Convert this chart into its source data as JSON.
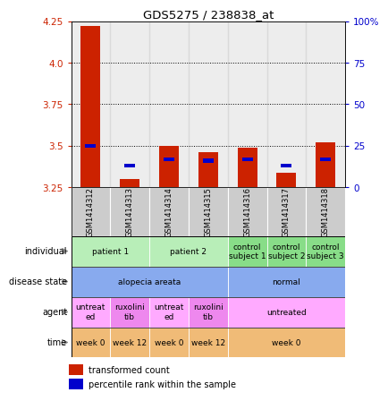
{
  "title": "GDS5275 / 238838_at",
  "samples": [
    "GSM1414312",
    "GSM1414313",
    "GSM1414314",
    "GSM1414315",
    "GSM1414316",
    "GSM1414317",
    "GSM1414318"
  ],
  "red_values": [
    4.22,
    3.3,
    3.5,
    3.46,
    3.49,
    3.34,
    3.52
  ],
  "blue_values": [
    3.5,
    3.38,
    3.42,
    3.41,
    3.42,
    3.38,
    3.42
  ],
  "y_min": 3.25,
  "y_max": 4.25,
  "y_ticks_left": [
    3.25,
    3.5,
    3.75,
    4.0,
    4.25
  ],
  "y_ticks_right": [
    0,
    25,
    50,
    75,
    100
  ],
  "y_right_labels": [
    "0",
    "25",
    "50",
    "75",
    "100%"
  ],
  "dotted_lines": [
    3.5,
    3.75,
    4.0
  ],
  "bar_width": 0.5,
  "bar_bottom": 3.25,
  "individual_groups": [
    {
      "label": "patient 1",
      "cols": [
        0,
        1
      ],
      "color": "#b8eeb8"
    },
    {
      "label": "patient 2",
      "cols": [
        2,
        3
      ],
      "color": "#b8eeb8"
    },
    {
      "label": "control\nsubject 1",
      "cols": [
        4,
        4
      ],
      "color": "#88dd88"
    },
    {
      "label": "control\nsubject 2",
      "cols": [
        5,
        5
      ],
      "color": "#88dd88"
    },
    {
      "label": "control\nsubject 3",
      "cols": [
        6,
        6
      ],
      "color": "#88dd88"
    }
  ],
  "disease_groups": [
    {
      "label": "alopecia areata",
      "cols": [
        0,
        3
      ],
      "color": "#88aaee"
    },
    {
      "label": "normal",
      "cols": [
        4,
        6
      ],
      "color": "#88aaee"
    }
  ],
  "agent_groups": [
    {
      "label": "untreat\ned",
      "cols": [
        0,
        0
      ],
      "color": "#ffaaff"
    },
    {
      "label": "ruxolini\ntib",
      "cols": [
        1,
        1
      ],
      "color": "#ee88ee"
    },
    {
      "label": "untreat\ned",
      "cols": [
        2,
        2
      ],
      "color": "#ffaaff"
    },
    {
      "label": "ruxolini\ntib",
      "cols": [
        3,
        3
      ],
      "color": "#ee88ee"
    },
    {
      "label": "untreated",
      "cols": [
        4,
        6
      ],
      "color": "#ffaaff"
    }
  ],
  "time_groups": [
    {
      "label": "week 0",
      "cols": [
        0,
        0
      ],
      "color": "#f0bb77"
    },
    {
      "label": "week 12",
      "cols": [
        1,
        1
      ],
      "color": "#f0bb77"
    },
    {
      "label": "week 0",
      "cols": [
        2,
        2
      ],
      "color": "#f0bb77"
    },
    {
      "label": "week 12",
      "cols": [
        3,
        3
      ],
      "color": "#f0bb77"
    },
    {
      "label": "week 0",
      "cols": [
        4,
        6
      ],
      "color": "#f0bb77"
    }
  ],
  "row_labels": [
    "individual",
    "disease state",
    "agent",
    "time"
  ],
  "red_color": "#cc2200",
  "blue_color": "#0000cc",
  "sample_header_color": "#cccccc",
  "legend_red": "transformed count",
  "legend_blue": "percentile rank within the sample"
}
